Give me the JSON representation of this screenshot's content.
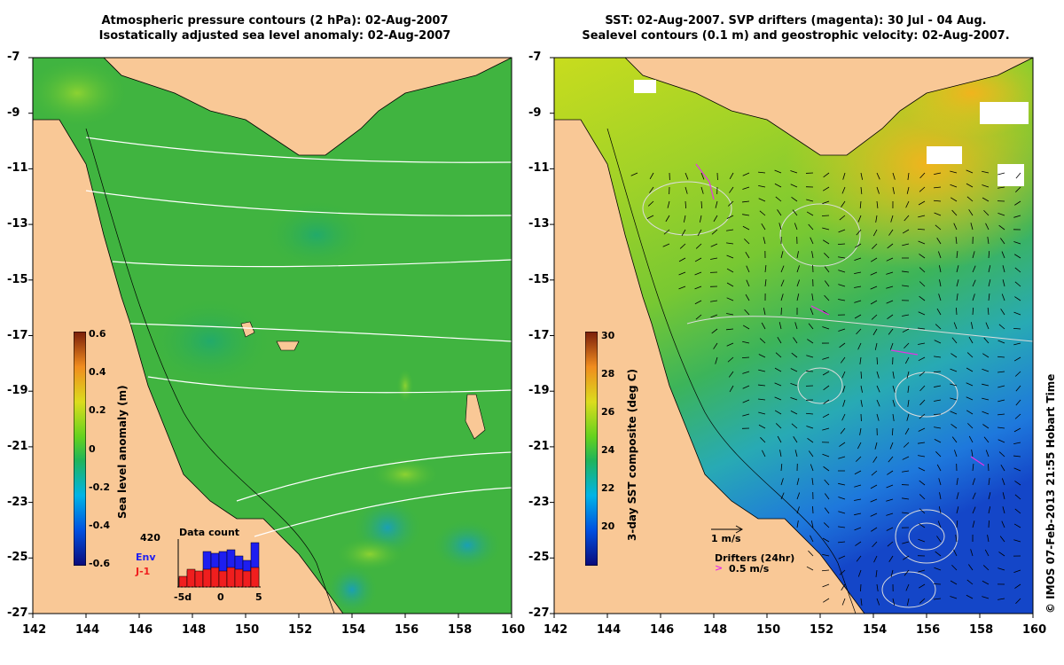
{
  "left": {
    "title_line1": "Atmospheric pressure contours (2 hPa): 02-Aug-2007",
    "title_line2": "Isostatically adjusted sea level anomaly: 02-Aug-2007",
    "colorbar_label": "Sea level anomaly (m)",
    "colorbar_ticks": [
      "0.6",
      "0.4",
      "0.2",
      "0",
      "-0.2",
      "-0.4",
      "-0.6"
    ],
    "inset": {
      "title": "Data count",
      "max_label": "420",
      "series_env": "Env",
      "series_j1": "J-1",
      "x_ticks": [
        "-5d",
        "0",
        "5"
      ],
      "colors": {
        "env": "#1e1ef0",
        "j1": "#f01e1e"
      }
    }
  },
  "right": {
    "title_line1": "SST: 02-Aug-2007. SVP drifters (magenta): 30 Jul - 04 Aug.",
    "title_line2": "Sealevel contours (0.1 m) and geostrophic velocity: 02-Aug-2007.",
    "colorbar_label": "3-day SST composite (deg C)",
    "colorbar_ticks": [
      "30",
      "28",
      "26",
      "24",
      "22",
      "20"
    ],
    "velocity_scale": "1 m/s",
    "drifter_label": "Drifters (24hr)",
    "drifter_scale": "0.5 m/s"
  },
  "axes": {
    "lat_ticks": [
      "-7",
      "-9",
      "-11",
      "-13",
      "-15",
      "-17",
      "-19",
      "-21",
      "-23",
      "-25",
      "-27"
    ],
    "lon_ticks": [
      "142",
      "144",
      "146",
      "148",
      "150",
      "152",
      "154",
      "156",
      "158",
      "160"
    ]
  },
  "credit": "© IMOS 07-Feb-2013 21:55 Hobart Time",
  "colors": {
    "land": "#f9c896",
    "sea_left": "#3cb43c",
    "axis": "#000000"
  }
}
